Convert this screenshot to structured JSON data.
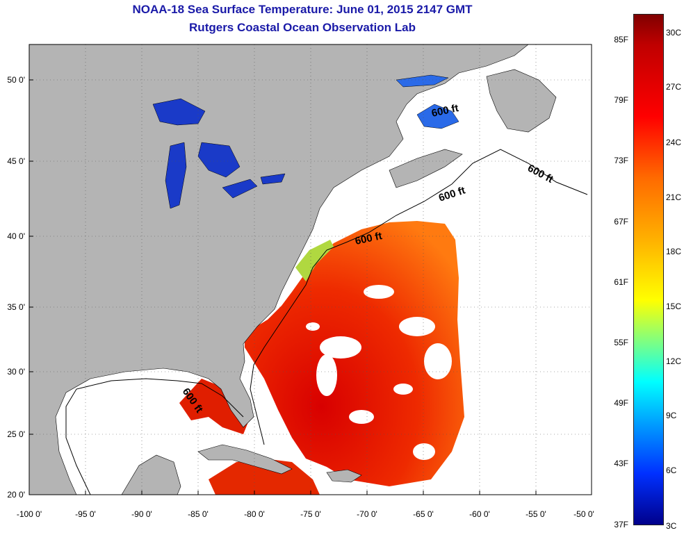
{
  "header": {
    "title": "NOAA-18 Sea Surface Temperature:  June 01, 2015 2147 GMT",
    "subtitle": "Rutgers Coastal Ocean Observation Lab"
  },
  "map": {
    "lat_labels": [
      "50 0'",
      "45 0'",
      "40 0'",
      "35 0'",
      "30 0'",
      "25 0'",
      "20 0'"
    ],
    "lon_labels": [
      "-100 0'",
      "-95 0'",
      "-90 0'",
      "-85 0'",
      "-80 0'",
      "-75 0'",
      "-70 0'",
      "-65 0'",
      "-60 0'",
      "-55 0'",
      "-50 0'"
    ],
    "isobath_labels": [
      "600 ft",
      "600 ft",
      "600 ft",
      "600 ft",
      "600 ft"
    ],
    "colors": {
      "land": "#b4b4b4",
      "ocean": "#ffffff",
      "title": "#1a1aa8"
    }
  },
  "colorbar": {
    "fahrenheit": [
      "85F",
      "79F",
      "73F",
      "67F",
      "61F",
      "55F",
      "49F",
      "43F",
      "37F"
    ],
    "celsius": [
      "30C",
      "27C",
      "24C",
      "21C",
      "18C",
      "15C",
      "12C",
      "9C",
      "6C",
      "3C"
    ]
  }
}
